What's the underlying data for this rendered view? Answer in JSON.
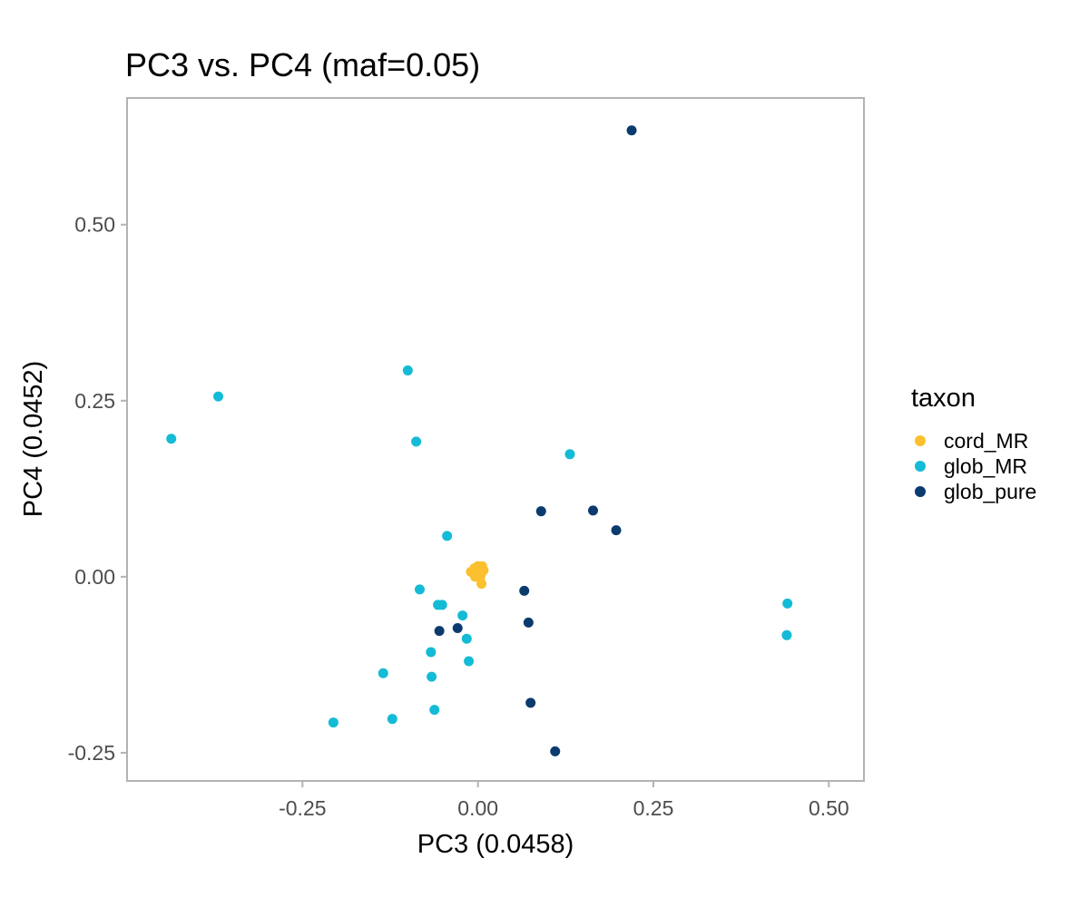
{
  "chart_data": {
    "type": "scatter",
    "title": "PC3 vs. PC4 (maf=0.05)",
    "xlabel": "PC3 (0.0458)",
    "ylabel": "PC4 (0.0452)",
    "xlim": [
      -0.5,
      0.55
    ],
    "ylim": [
      -0.29,
      0.68
    ],
    "x_ticks": [
      -0.25,
      0.0,
      0.25,
      0.5
    ],
    "x_tick_labels": [
      "-0.25",
      "0.00",
      "0.25",
      "0.50"
    ],
    "y_ticks": [
      -0.25,
      0.0,
      0.25,
      0.5
    ],
    "y_tick_labels": [
      "-0.25",
      "0.00",
      "0.25",
      "0.50"
    ],
    "grid": false,
    "legend": {
      "title": "taxon",
      "placement": "right"
    },
    "series": [
      {
        "name": "cord_MR",
        "color": "#FBC02D",
        "points": [
          [
            -0.01,
            0.007
          ],
          [
            -0.005,
            0.012
          ],
          [
            0.0,
            0.015
          ],
          [
            0.002,
            0.01
          ],
          [
            0.004,
            0.003
          ],
          [
            0.006,
            0.015
          ],
          [
            0.008,
            0.009
          ],
          [
            0.003,
            -0.002
          ],
          [
            -0.002,
            0.002
          ],
          [
            0.005,
            -0.01
          ],
          [
            0.001,
            0.006
          ],
          [
            -0.004,
            0.0
          ]
        ]
      },
      {
        "name": "glob_MR",
        "color": "#14BBD6",
        "points": [
          [
            -0.437,
            0.196
          ],
          [
            -0.37,
            0.256
          ],
          [
            -0.1,
            0.293
          ],
          [
            -0.088,
            0.192
          ],
          [
            0.131,
            0.174
          ],
          [
            -0.044,
            0.058
          ],
          [
            -0.083,
            -0.018
          ],
          [
            -0.057,
            -0.04
          ],
          [
            -0.051,
            -0.04
          ],
          [
            -0.022,
            -0.055
          ],
          [
            -0.016,
            -0.088
          ],
          [
            -0.013,
            -0.12
          ],
          [
            -0.067,
            -0.107
          ],
          [
            -0.066,
            -0.142
          ],
          [
            -0.135,
            -0.137
          ],
          [
            -0.062,
            -0.189
          ],
          [
            -0.122,
            -0.202
          ],
          [
            -0.206,
            -0.207
          ],
          [
            0.441,
            -0.038
          ],
          [
            0.44,
            -0.083
          ]
        ]
      },
      {
        "name": "glob_pure",
        "color": "#0B3B6E",
        "points": [
          [
            0.219,
            0.634
          ],
          [
            0.09,
            0.093
          ],
          [
            0.164,
            0.094
          ],
          [
            0.197,
            0.066
          ],
          [
            0.066,
            -0.02
          ],
          [
            0.072,
            -0.065
          ],
          [
            -0.055,
            -0.077
          ],
          [
            -0.029,
            -0.073
          ],
          [
            0.075,
            -0.179
          ],
          [
            0.11,
            -0.248
          ]
        ]
      }
    ]
  }
}
